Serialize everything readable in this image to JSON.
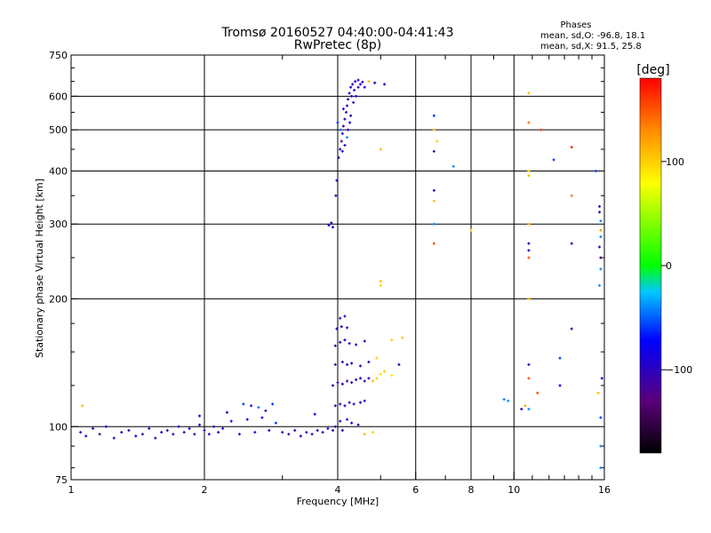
{
  "header": {
    "title_line1": "Tromsø 20160527 04:40:00-04:41:43",
    "title_line2": "RwPretec (8p)",
    "phases_label": "Phases",
    "stats_o": "mean, sd,O: -96.8, 18.1",
    "stats_x": "mean, sd,X:  91.5, 25.8"
  },
  "colorbar": {
    "label": "[deg]",
    "min": -180,
    "max": 180,
    "ticks": [
      {
        "value": 100,
        "label": "100"
      },
      {
        "value": 0,
        "label": "0"
      },
      {
        "value": -100,
        "label": "−100"
      }
    ]
  },
  "chart_data": {
    "type": "scatter",
    "title": "Tromsø 20160527 04:40:00-04:41:43",
    "subtitle": "RwPretec (8p)",
    "xlabel": "Frequency [MHz]",
    "ylabel": "Stationary phase Virtual Height [km]",
    "xscale": "log",
    "yscale": "log",
    "xlim": [
      1,
      16
    ],
    "ylim": [
      75,
      750
    ],
    "grid": true,
    "xticks": [
      {
        "value": 1,
        "label": "1"
      },
      {
        "value": 2,
        "label": "2"
      },
      {
        "value": 4,
        "label": "4"
      },
      {
        "value": 6,
        "label": "6"
      },
      {
        "value": 8,
        "label": "8"
      },
      {
        "value": 10,
        "label": "10"
      },
      {
        "value": 16,
        "label": "16"
      }
    ],
    "xgrid": [
      2,
      4,
      6,
      8,
      10
    ],
    "xminor": [
      3,
      5,
      7,
      9,
      11,
      12,
      13,
      14,
      15
    ],
    "yticks": [
      {
        "value": 75,
        "label": "75"
      },
      {
        "value": 100,
        "label": "100"
      },
      {
        "value": 200,
        "label": "200"
      },
      {
        "value": 300,
        "label": "300"
      },
      {
        "value": 400,
        "label": "400"
      },
      {
        "value": 500,
        "label": "500"
      },
      {
        "value": 600,
        "label": "600"
      },
      {
        "value": 750,
        "label": "750"
      }
    ],
    "ygrid": [
      100,
      200,
      300,
      400,
      500,
      600
    ],
    "color_dimension": "phase [deg]",
    "points": [
      [
        1.05,
        97,
        -100
      ],
      [
        1.08,
        95,
        -105
      ],
      [
        1.12,
        99,
        -98
      ],
      [
        1.16,
        96,
        -110
      ],
      [
        1.2,
        100,
        -95
      ],
      [
        1.25,
        94,
        -102
      ],
      [
        1.3,
        97,
        -90
      ],
      [
        1.35,
        98,
        -108
      ],
      [
        1.4,
        95,
        -100
      ],
      [
        1.45,
        96,
        -115
      ],
      [
        1.5,
        99,
        -97
      ],
      [
        1.55,
        94,
        -104
      ],
      [
        1.6,
        97,
        -88
      ],
      [
        1.65,
        98,
        -112
      ],
      [
        1.7,
        96,
        -100
      ],
      [
        1.75,
        100,
        -95
      ],
      [
        1.8,
        97,
        -106
      ],
      [
        1.85,
        99,
        -92
      ],
      [
        1.9,
        96,
        -101
      ],
      [
        1.95,
        101,
        -99
      ],
      [
        2.0,
        98,
        -108
      ],
      [
        2.05,
        96,
        -93
      ],
      [
        2.1,
        100,
        -100
      ],
      [
        2.15,
        97,
        -110
      ],
      [
        2.2,
        99,
        -96
      ],
      [
        2.3,
        103,
        -90
      ],
      [
        2.4,
        96,
        -102
      ],
      [
        2.5,
        104,
        -85
      ],
      [
        2.6,
        97,
        -100
      ],
      [
        2.7,
        105,
        -70
      ],
      [
        2.8,
        98,
        -95
      ],
      [
        2.9,
        102,
        -60
      ],
      [
        3.0,
        97,
        -100
      ],
      [
        3.1,
        96,
        -105
      ],
      [
        3.2,
        98,
        -98
      ],
      [
        3.3,
        95,
        -110
      ],
      [
        3.4,
        97,
        -96
      ],
      [
        3.5,
        96,
        -104
      ],
      [
        3.6,
        98,
        -99
      ],
      [
        3.7,
        97,
        -101
      ],
      [
        3.8,
        99,
        -95
      ],
      [
        3.9,
        98,
        -108
      ],
      [
        3.95,
        100,
        -97
      ],
      [
        4.05,
        103,
        -100
      ],
      [
        4.1,
        98,
        -90
      ],
      [
        4.2,
        104,
        -105
      ],
      [
        4.3,
        102,
        -96
      ],
      [
        4.45,
        101,
        -100
      ],
      [
        4.6,
        96,
        110
      ],
      [
        4.8,
        97,
        100
      ],
      [
        1.06,
        112,
        110
      ],
      [
        2.45,
        113,
        -60
      ],
      [
        2.55,
        112,
        -95
      ],
      [
        2.65,
        111,
        -45
      ],
      [
        2.85,
        113,
        -60
      ],
      [
        2.25,
        108,
        -100
      ],
      [
        1.95,
        106,
        -90
      ],
      [
        2.75,
        109,
        -100
      ],
      [
        3.55,
        107,
        -80
      ],
      [
        3.95,
        112,
        -108
      ],
      [
        4.05,
        113,
        -100
      ],
      [
        4.15,
        112,
        -95
      ],
      [
        4.25,
        114,
        -102
      ],
      [
        4.35,
        113,
        -96
      ],
      [
        4.5,
        114,
        -100
      ],
      [
        4.6,
        115,
        -90
      ],
      [
        3.9,
        125,
        -100
      ],
      [
        4.0,
        127,
        -105
      ],
      [
        4.1,
        126,
        -98
      ],
      [
        4.2,
        128,
        -110
      ],
      [
        4.3,
        127,
        -95
      ],
      [
        4.4,
        129,
        -102
      ],
      [
        4.5,
        130,
        -97
      ],
      [
        4.6,
        128,
        -104
      ],
      [
        4.7,
        130,
        -100
      ],
      [
        4.8,
        128,
        110
      ],
      [
        4.9,
        130,
        100
      ],
      [
        5.0,
        133,
        90
      ],
      [
        5.1,
        135,
        105
      ],
      [
        5.3,
        132,
        95
      ],
      [
        5.5,
        140,
        -100
      ],
      [
        3.95,
        140,
        -100
      ],
      [
        4.1,
        142,
        -95
      ],
      [
        4.2,
        140,
        -105
      ],
      [
        4.3,
        141,
        -98
      ],
      [
        4.5,
        139,
        -100
      ],
      [
        4.7,
        142,
        -102
      ],
      [
        4.9,
        145,
        100
      ],
      [
        3.95,
        155,
        -100
      ],
      [
        4.05,
        158,
        -105
      ],
      [
        4.15,
        160,
        -98
      ],
      [
        4.25,
        157,
        -95
      ],
      [
        4.4,
        156,
        -100
      ],
      [
        4.6,
        159,
        -90
      ],
      [
        5.3,
        160,
        100
      ],
      [
        5.6,
        162,
        110
      ],
      [
        3.98,
        170,
        -100
      ],
      [
        4.08,
        172,
        -95
      ],
      [
        4.2,
        171,
        -105
      ],
      [
        4.05,
        180,
        -100
      ],
      [
        4.15,
        182,
        -98
      ],
      [
        3.82,
        298,
        -100
      ],
      [
        3.87,
        302,
        -100
      ],
      [
        3.9,
        295,
        -95
      ],
      [
        3.96,
        350,
        -100
      ],
      [
        3.98,
        380,
        -105
      ],
      [
        4.02,
        430,
        -100
      ],
      [
        4.05,
        450,
        -95
      ],
      [
        4.08,
        470,
        -105
      ],
      [
        4.1,
        490,
        -98
      ],
      [
        4.12,
        510,
        -100
      ],
      [
        4.15,
        530,
        -92
      ],
      [
        4.18,
        550,
        -108
      ],
      [
        4.2,
        570,
        -96
      ],
      [
        4.22,
        590,
        -102
      ],
      [
        4.25,
        610,
        -100
      ],
      [
        4.28,
        630,
        -94
      ],
      [
        4.32,
        640,
        -106
      ],
      [
        4.38,
        650,
        -100
      ],
      [
        4.45,
        655,
        -95
      ],
      [
        4.55,
        648,
        -100
      ],
      [
        4.7,
        650,
        110
      ],
      [
        4.85,
        645,
        -100
      ],
      [
        5.1,
        640,
        -105
      ],
      [
        4.0,
        520,
        -60
      ],
      [
        4.06,
        500,
        -50
      ],
      [
        4.12,
        560,
        -70
      ],
      [
        4.2,
        480,
        -40
      ],
      [
        4.26,
        520,
        -80
      ],
      [
        4.3,
        600,
        -90
      ],
      [
        4.36,
        620,
        -100
      ],
      [
        4.1,
        445,
        -105
      ],
      [
        4.15,
        460,
        -100
      ],
      [
        4.22,
        500,
        -98
      ],
      [
        4.28,
        540,
        -104
      ],
      [
        4.34,
        580,
        -100
      ],
      [
        4.4,
        600,
        -95
      ],
      [
        4.45,
        630,
        -105
      ],
      [
        4.5,
        640,
        -100
      ],
      [
        4.6,
        630,
        -98
      ],
      [
        5.0,
        450,
        110
      ],
      [
        5.0,
        220,
        110
      ],
      [
        5.0,
        215,
        100
      ],
      [
        6.6,
        540,
        -60
      ],
      [
        6.6,
        500,
        110
      ],
      [
        6.7,
        470,
        100
      ],
      [
        6.6,
        445,
        -120
      ],
      [
        6.6,
        360,
        -100
      ],
      [
        6.6,
        340,
        110
      ],
      [
        6.6,
        300,
        -40
      ],
      [
        6.6,
        270,
        150
      ],
      [
        7.3,
        410,
        -40
      ],
      [
        8.0,
        290,
        100
      ],
      [
        9.5,
        116,
        -40
      ],
      [
        9.7,
        115,
        -40
      ],
      [
        10.4,
        110,
        -100
      ],
      [
        10.6,
        112,
        120
      ],
      [
        10.8,
        610,
        110
      ],
      [
        10.8,
        520,
        140
      ],
      [
        10.8,
        400,
        100
      ],
      [
        10.8,
        390,
        110
      ],
      [
        10.8,
        300,
        110
      ],
      [
        10.8,
        270,
        -100
      ],
      [
        10.8,
        260,
        -100
      ],
      [
        10.8,
        250,
        150
      ],
      [
        10.8,
        200,
        110
      ],
      [
        10.8,
        140,
        -100
      ],
      [
        10.8,
        130,
        150
      ],
      [
        10.8,
        110,
        -40
      ],
      [
        11.3,
        120,
        150
      ],
      [
        11.5,
        500,
        160
      ],
      [
        12.3,
        425,
        -60
      ],
      [
        12.7,
        145,
        -60
      ],
      [
        12.7,
        125,
        -80
      ],
      [
        13.5,
        455,
        170
      ],
      [
        13.5,
        350,
        140
      ],
      [
        13.5,
        170,
        -100
      ],
      [
        13.5,
        270,
        -100
      ],
      [
        15.3,
        400,
        -60
      ],
      [
        15.6,
        330,
        -100
      ],
      [
        15.6,
        320,
        -110
      ],
      [
        15.7,
        305,
        -40
      ],
      [
        15.7,
        290,
        130
      ],
      [
        15.7,
        280,
        -40
      ],
      [
        15.6,
        265,
        -100
      ],
      [
        15.7,
        250,
        -140
      ],
      [
        15.7,
        235,
        -40
      ],
      [
        15.6,
        215,
        -40
      ],
      [
        15.8,
        130,
        -100
      ],
      [
        15.5,
        120,
        110
      ],
      [
        15.7,
        105,
        -60
      ],
      [
        15.7,
        90,
        -40
      ],
      [
        15.7,
        80,
        -40
      ]
    ]
  }
}
